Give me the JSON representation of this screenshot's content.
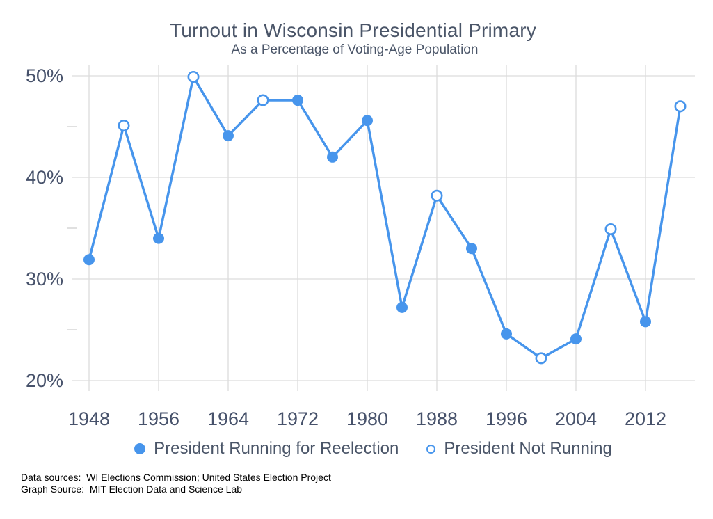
{
  "chart_data": {
    "type": "line",
    "title": "Turnout in Wisconsin Presidential Primary",
    "subtitle": "As a Percentage of Voting-Age Population",
    "xlabel": "",
    "ylabel": "",
    "x_range": [
      1946,
      2018
    ],
    "y_range": [
      19,
      51
    ],
    "x_ticks": [
      1948,
      1956,
      1964,
      1972,
      1980,
      1988,
      1996,
      2004,
      2012
    ],
    "x_tick_labels": [
      "1948",
      "1956",
      "1964",
      "1972",
      "1980",
      "1988",
      "1996",
      "2004",
      "2012"
    ],
    "y_ticks": [
      20,
      30,
      40,
      50
    ],
    "y_tick_suffix": "%",
    "y_minor_ticks": [
      25,
      35,
      45
    ],
    "grid": "major gridlines on, light gray; minor y ticks as short dashes at axis",
    "legend_position": "bottom",
    "points": [
      {
        "year": 1948,
        "value": 31.9,
        "president_running": true
      },
      {
        "year": 1952,
        "value": 45.1,
        "president_running": false
      },
      {
        "year": 1956,
        "value": 34.0,
        "president_running": true
      },
      {
        "year": 1960,
        "value": 49.9,
        "president_running": false
      },
      {
        "year": 1964,
        "value": 44.1,
        "president_running": true
      },
      {
        "year": 1968,
        "value": 47.6,
        "president_running": false
      },
      {
        "year": 1972,
        "value": 47.6,
        "president_running": true
      },
      {
        "year": 1976,
        "value": 42.0,
        "president_running": true
      },
      {
        "year": 1980,
        "value": 45.6,
        "president_running": true
      },
      {
        "year": 1984,
        "value": 27.2,
        "president_running": true
      },
      {
        "year": 1988,
        "value": 38.2,
        "president_running": false
      },
      {
        "year": 1992,
        "value": 33.0,
        "president_running": true
      },
      {
        "year": 1996,
        "value": 24.6,
        "president_running": true
      },
      {
        "year": 2000,
        "value": 22.2,
        "president_running": false
      },
      {
        "year": 2004,
        "value": 24.1,
        "president_running": true
      },
      {
        "year": 2008,
        "value": 34.9,
        "president_running": false
      },
      {
        "year": 2012,
        "value": 25.8,
        "president_running": true
      },
      {
        "year": 2016,
        "value": 47.0,
        "president_running": false
      }
    ],
    "series_labels": {
      "running": "President Running for Reelection",
      "not_running": "President Not Running"
    },
    "colors": {
      "line": "#4795ec",
      "marker_filled": "#4795ec",
      "marker_open_ring": "#4795ec",
      "marker_open_fill": "#ffffff",
      "grid": "#dcdcdc",
      "minor_tick": "#d0d0d0",
      "tick_text": "#47526b",
      "title_text": "#4a5568"
    }
  },
  "footer": {
    "line1": "Data sources:  WI Elections Commission; United States Election Project",
    "line2": "Graph Source:  MIT Election Data and Science Lab"
  }
}
